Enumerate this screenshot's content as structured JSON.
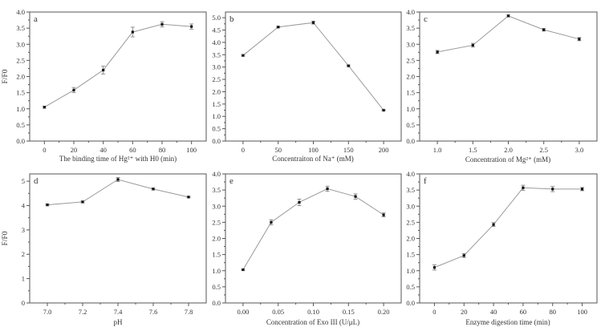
{
  "chart_data": [
    {
      "type": "line",
      "panel_label": "a",
      "xlabel": "The binding time of Hg²⁺ with H0 (min)",
      "ylabel": "F/F0",
      "xlim": [
        -10,
        110
      ],
      "ylim": [
        0,
        4.0
      ],
      "xticks": [
        "0",
        "20",
        "40",
        "60",
        "80",
        "100"
      ],
      "xtick_values": [
        0,
        20,
        40,
        60,
        80,
        100
      ],
      "yticks": [
        "0.0",
        "0.5",
        "1.0",
        "1.5",
        "2.0",
        "2.5",
        "3.0",
        "3.5",
        "4.0"
      ],
      "ytick_values": [
        0,
        0.5,
        1,
        1.5,
        2,
        2.5,
        3,
        3.5,
        4
      ],
      "x": [
        0,
        20,
        40,
        60,
        80,
        100
      ],
      "y": [
        1.05,
        1.58,
        2.2,
        3.38,
        3.62,
        3.55
      ],
      "yerr": [
        0.03,
        0.08,
        0.12,
        0.15,
        0.08,
        0.08
      ],
      "grid": false
    },
    {
      "type": "line",
      "panel_label": "b",
      "xlabel": "Concentraiton of Na⁺ (mM)",
      "ylabel": "",
      "xlim": [
        -25,
        225
      ],
      "ylim": [
        0,
        5.23
      ],
      "xticks": [
        "0",
        "50",
        "100",
        "150",
        "200"
      ],
      "xtick_values": [
        0,
        50,
        100,
        150,
        200
      ],
      "yticks": [
        "0.0",
        "0.5",
        "1.0",
        "1.5",
        "2.0",
        "2.5",
        "3.0",
        "3.5",
        "4.0",
        "4.5",
        "5.0"
      ],
      "ytick_values": [
        0,
        0.5,
        1,
        1.5,
        2,
        2.5,
        3,
        3.5,
        4,
        4.5,
        5
      ],
      "x": [
        0,
        50,
        100,
        150,
        200
      ],
      "y": [
        3.47,
        4.62,
        4.8,
        3.05,
        1.25
      ],
      "yerr": [
        0.03,
        0.03,
        0.06,
        0.03,
        0.02
      ],
      "grid": false
    },
    {
      "type": "line",
      "panel_label": "c",
      "xlabel": "Concentration of Mg²⁺ (mM)",
      "ylabel": "",
      "xlim": [
        0.75,
        3.25
      ],
      "ylim": [
        0,
        4.0
      ],
      "xticks": [
        "1.0",
        "1.5",
        "2.0",
        "2.5",
        "3.0"
      ],
      "xtick_values": [
        1,
        1.5,
        2,
        2.5,
        3
      ],
      "yticks": [
        "0.0",
        "0.5",
        "1.0",
        "1.5",
        "2.0",
        "2.5",
        "3.0",
        "3.5",
        "4.0"
      ],
      "ytick_values": [
        0,
        0.5,
        1,
        1.5,
        2,
        2.5,
        3,
        3.5,
        4
      ],
      "x": [
        1.0,
        1.5,
        2.0,
        2.5,
        3.0
      ],
      "y": [
        2.76,
        2.97,
        3.88,
        3.45,
        3.16
      ],
      "yerr": [
        0.05,
        0.06,
        0.03,
        0.04,
        0.05
      ],
      "grid": false
    },
    {
      "type": "line",
      "panel_label": "d",
      "xlabel": "pH",
      "ylabel": "F/F0",
      "xlim": [
        6.9,
        7.9
      ],
      "ylim": [
        0,
        5.3
      ],
      "xticks": [
        "7.0",
        "7.2",
        "7.4",
        "7.6",
        "7.8"
      ],
      "xtick_values": [
        7.0,
        7.2,
        7.4,
        7.6,
        7.8
      ],
      "yticks": [
        "0",
        "1",
        "2",
        "3",
        "4",
        "5"
      ],
      "ytick_values": [
        0,
        1,
        2,
        3,
        4,
        5
      ],
      "x": [
        7.0,
        7.2,
        7.4,
        7.6,
        7.8
      ],
      "y": [
        4.03,
        4.15,
        5.07,
        4.68,
        4.35
      ],
      "yerr": [
        0.04,
        0.04,
        0.08,
        0.04,
        0.03
      ],
      "grid": false
    },
    {
      "type": "line",
      "panel_label": "e",
      "xlabel": "Concentration of Exo III (U/μL)",
      "ylabel": "",
      "xlim": [
        -0.025,
        0.225
      ],
      "ylim": [
        0,
        4.0
      ],
      "xticks": [
        "0.00",
        "0.05",
        "0.10",
        "0.15",
        "0.20"
      ],
      "xtick_values": [
        0,
        0.05,
        0.1,
        0.15,
        0.2
      ],
      "yticks": [
        "0.0",
        "0.5",
        "1.0",
        "1.5",
        "2.0",
        "2.5",
        "3.0",
        "3.5",
        "4.0"
      ],
      "ytick_values": [
        0,
        0.5,
        1,
        1.5,
        2,
        2.5,
        3,
        3.5,
        4
      ],
      "x": [
        0,
        0.04,
        0.08,
        0.12,
        0.16,
        0.2
      ],
      "y": [
        1.03,
        2.5,
        3.12,
        3.54,
        3.3,
        2.73
      ],
      "yerr": [
        0.02,
        0.08,
        0.1,
        0.08,
        0.08,
        0.06
      ],
      "grid": false
    },
    {
      "type": "line",
      "panel_label": "f",
      "xlabel": "Enzyme digestion time (min)",
      "ylabel": "",
      "xlim": [
        -10,
        110
      ],
      "ylim": [
        0,
        4.0
      ],
      "xticks": [
        "0",
        "20",
        "40",
        "60",
        "80",
        "100"
      ],
      "xtick_values": [
        0,
        20,
        40,
        60,
        80,
        100
      ],
      "yticks": [
        "0.0",
        "0.5",
        "1.0",
        "1.5",
        "2.0",
        "2.5",
        "3.0",
        "3.5",
        "4.0"
      ],
      "ytick_values": [
        0,
        0.5,
        1,
        1.5,
        2,
        2.5,
        3,
        3.5,
        4
      ],
      "x": [
        0,
        20,
        40,
        60,
        80,
        100
      ],
      "y": [
        1.1,
        1.47,
        2.43,
        3.57,
        3.53,
        3.53
      ],
      "yerr": [
        0.08,
        0.06,
        0.06,
        0.08,
        0.08,
        0.05
      ],
      "grid": false
    }
  ],
  "colors": {
    "line": "#9a9a9a",
    "marker": "#111111",
    "axis": "#555555"
  }
}
